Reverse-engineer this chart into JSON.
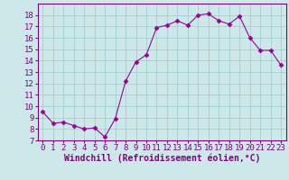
{
  "x": [
    0,
    1,
    2,
    3,
    4,
    5,
    6,
    7,
    8,
    9,
    10,
    11,
    12,
    13,
    14,
    15,
    16,
    17,
    18,
    19,
    20,
    21,
    22,
    23
  ],
  "y": [
    9.5,
    8.5,
    8.6,
    8.3,
    8.0,
    8.1,
    7.3,
    8.9,
    12.2,
    13.9,
    14.5,
    16.9,
    17.1,
    17.5,
    17.1,
    18.0,
    18.1,
    17.5,
    17.2,
    17.9,
    16.0,
    14.9,
    14.9,
    13.6
  ],
  "line_color": "#990099",
  "marker": "D",
  "marker_size": 2.5,
  "bg_color": "#cce8e8",
  "grid_color": "#99cccc",
  "xlabel": "Windchill (Refroidissement éolien,°C)",
  "xlabel_fontsize": 7,
  "ylim": [
    7,
    19
  ],
  "xlim": [
    -0.5,
    23.5
  ],
  "yticks": [
    7,
    8,
    9,
    10,
    11,
    12,
    13,
    14,
    15,
    16,
    17,
    18
  ],
  "xticks": [
    0,
    1,
    2,
    3,
    4,
    5,
    6,
    7,
    8,
    9,
    10,
    11,
    12,
    13,
    14,
    15,
    16,
    17,
    18,
    19,
    20,
    21,
    22,
    23
  ],
  "tick_fontsize": 6.5,
  "spine_color": "#800080",
  "axis_border_color": "#800080"
}
